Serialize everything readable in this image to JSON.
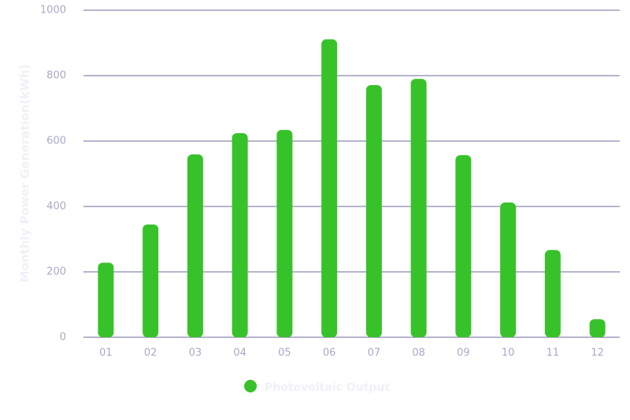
{
  "chart_data": {
    "type": "bar",
    "y_label": "Monthly Power Generation(kWh)",
    "categories": [
      "01",
      "02",
      "03",
      "04",
      "05",
      "06",
      "07",
      "08",
      "09",
      "10",
      "11",
      "12"
    ],
    "series": [
      {
        "name": "Photovoltaic Output",
        "color": "#38c22a",
        "values": [
          228,
          345,
          559,
          624,
          634,
          911,
          771,
          790,
          557,
          412,
          267,
          55
        ]
      }
    ],
    "ylim": [
      0,
      1000
    ],
    "yticks": [
      0,
      200,
      400,
      600,
      800,
      1000
    ],
    "grid": true
  }
}
